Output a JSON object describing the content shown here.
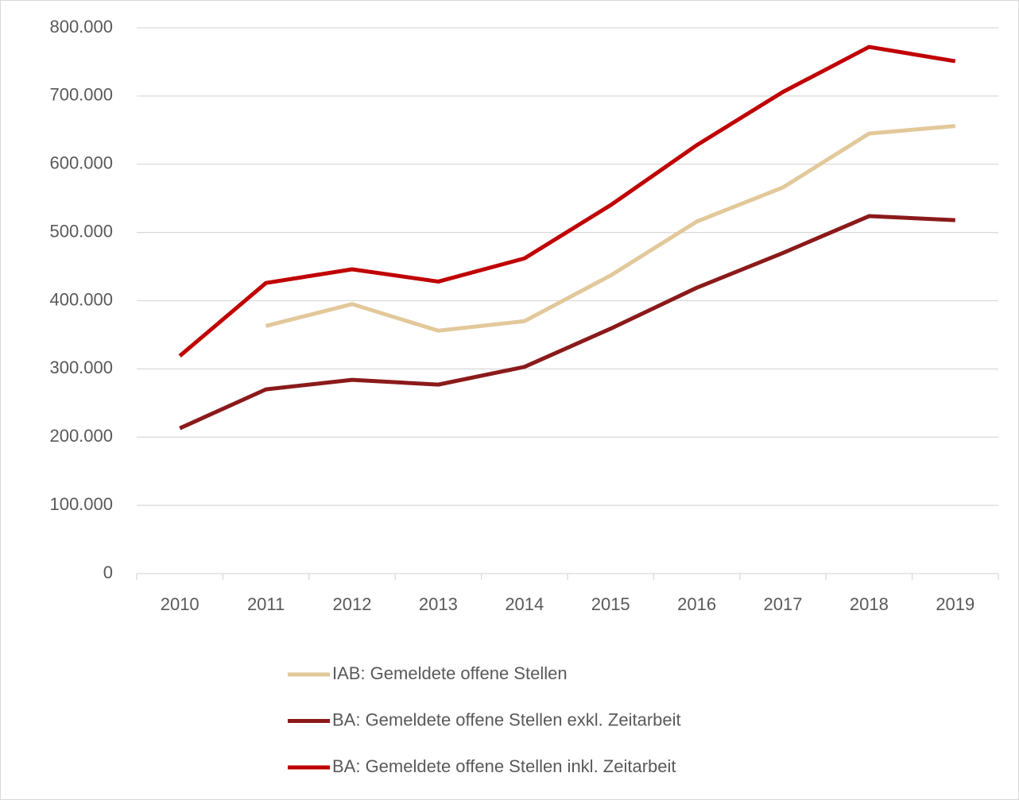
{
  "chart_data": {
    "type": "line",
    "categories": [
      "2010",
      "2011",
      "2012",
      "2013",
      "2014",
      "2015",
      "2016",
      "2017",
      "2018",
      "2019"
    ],
    "series": [
      {
        "name": "IAB: Gemeldete offene Stellen",
        "color": "#e2c89a",
        "values": [
          null,
          363000,
          395000,
          356000,
          370000,
          437000,
          516000,
          566000,
          645000,
          656000
        ]
      },
      {
        "name": "BA: Gemeldete offene Stellen exkl. Zeitarbeit",
        "color": "#8b1a1a",
        "values": [
          213000,
          270000,
          284000,
          277000,
          303000,
          359000,
          419000,
          470000,
          524000,
          518000
        ]
      },
      {
        "name": "BA: Gemeldete offene Stellen inkl. Zeitarbeit",
        "color": "#c00000",
        "values": [
          319000,
          426000,
          446000,
          428000,
          462000,
          540000,
          628000,
          706000,
          772000,
          751000
        ]
      }
    ],
    "ylim": [
      0,
      800000
    ],
    "yticks": [
      0,
      {
        "value": 100000,
        "label": "100.000"
      },
      {
        "value": 200000,
        "label": "200.000"
      },
      {
        "value": 300000,
        "label": "300.000"
      },
      {
        "value": 400000,
        "label": "400.000"
      },
      {
        "value": 500000,
        "label": "500.000"
      },
      {
        "value": 600000,
        "label": "600.000"
      },
      {
        "value": 700000,
        "label": "700.000"
      },
      {
        "value": 800000,
        "label": "800.000"
      }
    ],
    "grid": true,
    "legend": "bottom"
  }
}
